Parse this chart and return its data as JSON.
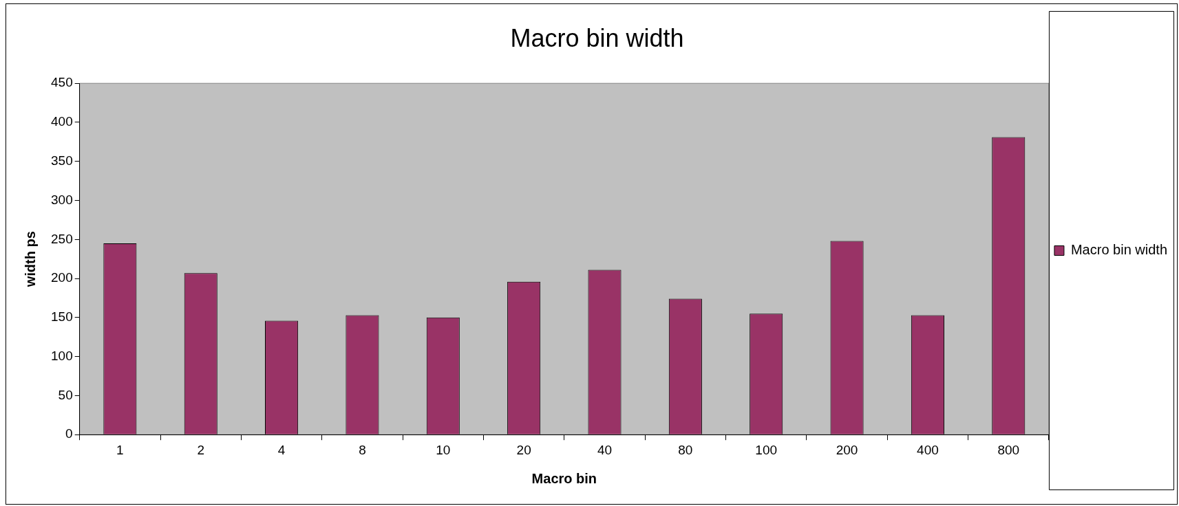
{
  "chart_data": {
    "type": "bar",
    "title": "Macro bin width",
    "xlabel": "Macro bin",
    "ylabel": "width ps",
    "categories": [
      "1",
      "2",
      "4",
      "8",
      "10",
      "20",
      "40",
      "80",
      "100",
      "200",
      "400",
      "800"
    ],
    "series": [
      {
        "name": "Macro bin width",
        "color": "#993366",
        "values": [
          245,
          207,
          146,
          153,
          150,
          196,
          211,
          174,
          155,
          248,
          153,
          381
        ]
      }
    ],
    "ylim": [
      0,
      450
    ],
    "yticks": [
      0,
      50,
      100,
      150,
      200,
      250,
      300,
      350,
      400,
      450
    ],
    "grid": false,
    "legend": "right"
  }
}
